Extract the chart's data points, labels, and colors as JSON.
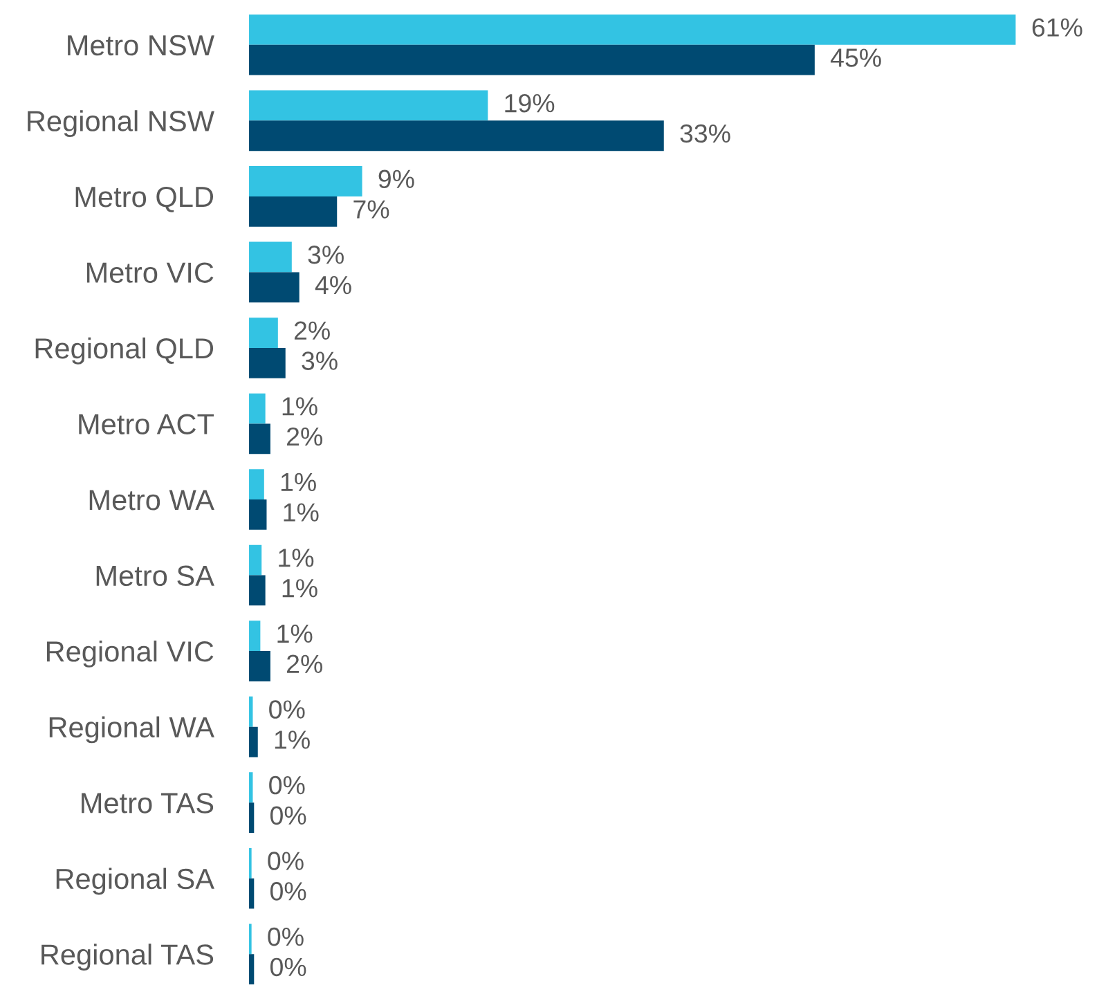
{
  "chart_data": {
    "type": "bar",
    "orientation": "horizontal",
    "categories": [
      "Metro NSW",
      "Regional NSW",
      "Metro QLD",
      "Metro VIC",
      "Regional QLD",
      "Metro ACT",
      "Metro WA",
      "Metro SA",
      "Regional VIC",
      "Regional WA",
      "Metro TAS",
      "Regional SA",
      "Regional TAS"
    ],
    "series": [
      {
        "color": "#33c3e3",
        "values": [
          61,
          19,
          9,
          3.4,
          2.3,
          1.3,
          1.2,
          1,
          0.9,
          0.3,
          0.3,
          0.2,
          0.2
        ],
        "value_labels": [
          "61%",
          "19%",
          "9%",
          "3%",
          "2%",
          "1%",
          "1%",
          "1%",
          "1%",
          "0%",
          "0%",
          "0%",
          "0%"
        ]
      },
      {
        "color": "#004a72",
        "values": [
          45,
          33,
          7,
          4,
          2.9,
          1.7,
          1.4,
          1.3,
          1.7,
          0.7,
          0.4,
          0.4,
          0.4
        ],
        "value_labels": [
          "45%",
          "33%",
          "7%",
          "4%",
          "3%",
          "2%",
          "1%",
          "1%",
          "2%",
          "1%",
          "0%",
          "0%",
          "0%"
        ]
      }
    ],
    "tick_labels": "y",
    "grid": false,
    "legend": false
  }
}
